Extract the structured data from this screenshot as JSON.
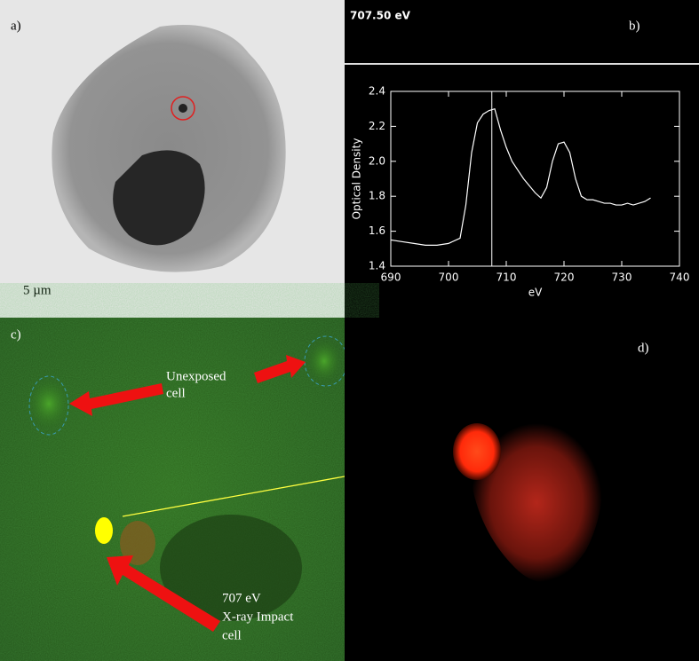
{
  "panels": {
    "a": {
      "label": "a)",
      "scale": "5 µm"
    },
    "c": {
      "label": "c)",
      "unexposed": [
        "Unexposed",
        "cell"
      ],
      "impact": [
        "707 eV",
        "X-ray Impact",
        "cell"
      ]
    },
    "d": {
      "label": "d)"
    }
  },
  "chart_data": {
    "type": "line",
    "label": "b)",
    "readout": "707.50 eV",
    "xlabel": "eV",
    "ylabel": "Optical Density",
    "xlim": [
      690,
      740
    ],
    "ylim": [
      1.4,
      2.4
    ],
    "xticks": [
      690,
      700,
      710,
      720,
      730,
      740
    ],
    "yticks": [
      1.4,
      1.6,
      1.8,
      {
        "value": 2,
        "label": "2.0"
      },
      2.2,
      2.4
    ],
    "marker_x": 707.5,
    "color": "#ffffff",
    "series": [
      {
        "x": [
          690,
          692,
          694,
          696,
          698,
          700,
          702,
          703,
          704,
          705,
          706,
          707,
          708,
          709,
          710,
          711,
          712,
          713,
          714,
          715,
          716,
          717,
          718,
          719,
          720,
          721,
          722,
          723,
          724,
          725,
          726,
          727,
          728,
          729,
          730,
          731,
          732,
          733,
          734,
          735
        ],
        "values": [
          1.55,
          1.54,
          1.53,
          1.52,
          1.52,
          1.53,
          1.56,
          1.75,
          2.05,
          2.22,
          2.27,
          2.29,
          2.3,
          2.18,
          2.08,
          2.0,
          1.95,
          1.9,
          1.86,
          1.82,
          1.79,
          1.85,
          2.0,
          2.1,
          2.11,
          2.05,
          1.9,
          1.8,
          1.78,
          1.78,
          1.77,
          1.76,
          1.76,
          1.75,
          1.75,
          1.76,
          1.75,
          1.76,
          1.77,
          1.79
        ]
      }
    ]
  }
}
